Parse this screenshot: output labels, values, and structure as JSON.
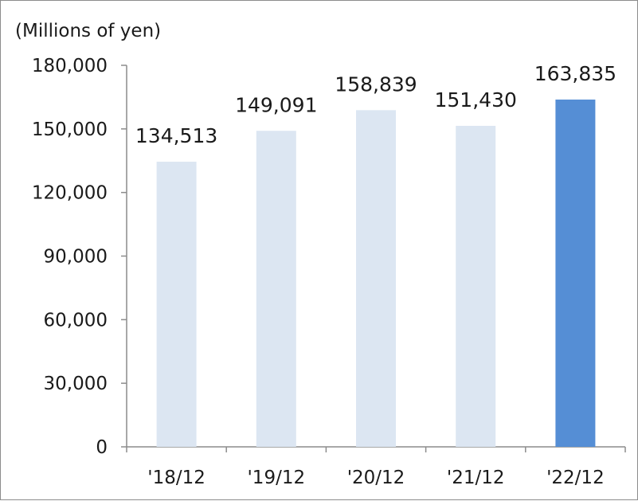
{
  "chart_data": {
    "type": "bar",
    "unit_label": "(Millions of yen)",
    "categories": [
      "'18/12",
      "'19/12",
      "'20/12",
      "'21/12",
      "'22/12"
    ],
    "values": [
      134513,
      149091,
      158839,
      151430,
      163835
    ],
    "value_labels": [
      "134,513",
      "149,091",
      "158,839",
      "151,430",
      "163,835"
    ],
    "ylim": [
      0,
      180000
    ],
    "yticks": [
      0,
      30000,
      60000,
      90000,
      120000,
      150000,
      180000
    ],
    "ytick_labels": [
      "0",
      "30,000",
      "60,000",
      "90,000",
      "120,000",
      "150,000",
      "180,000"
    ],
    "grid": false,
    "colors": {
      "bar": "#dce6f2",
      "highlight": "#558ed5",
      "axis": "#8c8c8c",
      "text": "#1a1a1a"
    },
    "highlight_index": 4
  }
}
